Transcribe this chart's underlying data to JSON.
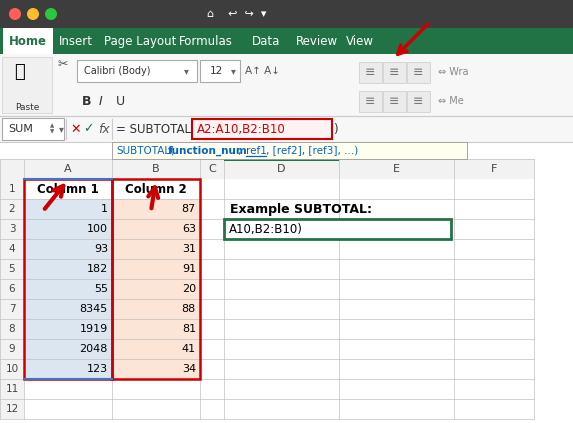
{
  "title_bar_color": "#217346",
  "toolbar_bg": "#f7f7f7",
  "grid_line_color": "#c0c0c0",
  "col_a_highlight_bg": "#dce6f1",
  "col_b_highlight_bg": "#fce4d6",
  "active_cell_border": "#217346",
  "col_a_data": [
    1,
    100,
    93,
    182,
    55,
    8345,
    1919,
    2048,
    123
  ],
  "col_b_data": [
    87,
    63,
    31,
    91,
    20,
    88,
    81,
    41,
    34
  ],
  "col_headers": [
    "A",
    "B",
    "C",
    "D",
    "E",
    "F"
  ],
  "formula_highlight_text": "A2:A10,B2:B10",
  "example_label": "Example SUBTOTAL:",
  "example_formula": "A10,B2:B10)",
  "tabs": [
    "Home",
    "Insert",
    "Page Layout",
    "Formulas",
    "Data",
    "Review",
    "View"
  ],
  "active_tab": "Home",
  "name_box": "SUM",
  "font_name": "Calibri (Body)",
  "font_size": "12"
}
